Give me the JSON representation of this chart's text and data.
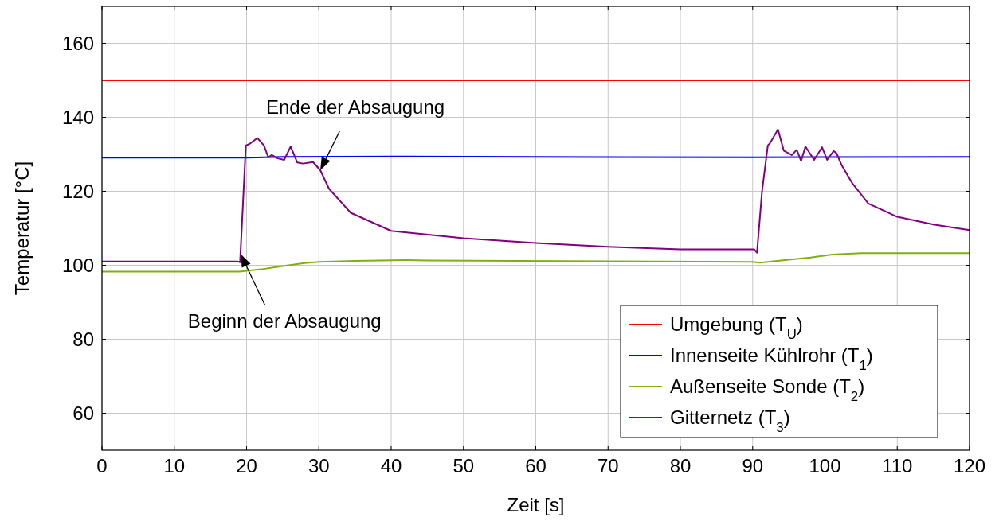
{
  "chart_data": {
    "type": "line",
    "xlabel": "Zeit [s]",
    "ylabel": "Temperatur [°C]",
    "xlim": [
      0,
      120
    ],
    "ylim": [
      50,
      170
    ],
    "xticks": [
      0,
      10,
      20,
      30,
      40,
      50,
      60,
      70,
      80,
      90,
      100,
      110,
      120
    ],
    "yticks": [
      60,
      80,
      100,
      120,
      140,
      160
    ],
    "grid": true,
    "legend": "bottom right",
    "marker": "none",
    "line_style": "solid",
    "series": [
      {
        "name": "Umgebung (T$_{U}$)",
        "color": "#ff0000",
        "x": [
          0,
          120
        ],
        "values": [
          150,
          150
        ]
      },
      {
        "name": "Innenseite Kühlrohr (T$_{1}$)",
        "color": "#0000ff",
        "x": [
          0,
          20,
          25,
          40,
          60,
          90,
          120
        ],
        "values": [
          129.1,
          129.1,
          129.3,
          129.4,
          129.3,
          129.2,
          129.3
        ]
      },
      {
        "name": "Außenseite Sonde (T$_{2}$)",
        "color": "#80b010",
        "x": [
          0,
          19,
          22,
          25,
          28,
          30,
          35,
          42,
          45,
          90,
          91,
          95,
          98,
          101,
          105,
          120
        ],
        "values": [
          98.3,
          98.3,
          98.9,
          99.8,
          100.6,
          100.9,
          101.2,
          101.4,
          101.3,
          100.9,
          100.7,
          101.5,
          102.1,
          102.9,
          103.3,
          103.3
        ]
      },
      {
        "name": "Gitternetz (T$_{3}$)",
        "color": "#800080",
        "x": [
          0,
          18.8,
          19.1,
          19.9,
          20.4,
          21.5,
          22.4,
          23,
          23.5,
          24.3,
          25.2,
          26.1,
          27,
          27.8,
          29.2,
          30.2,
          31.4,
          34.4,
          40,
          50,
          60,
          70,
          80,
          90.2,
          90.6,
          91.3,
          92.1,
          92.4,
          93.5,
          94.3,
          95.4,
          96.1,
          96.7,
          97.3,
          98.5,
          99.6,
          100.3,
          101.2,
          101.6,
          102.3,
          103.8,
          106,
          110,
          115,
          120
        ],
        "values": [
          101,
          101,
          100.8,
          132.4,
          132.8,
          134.4,
          132.4,
          129.2,
          129.8,
          128.9,
          128.5,
          132.1,
          127.8,
          127.5,
          127.9,
          125.7,
          120.7,
          114.2,
          109.3,
          107.3,
          106,
          105,
          104.3,
          104.3,
          103.4,
          120,
          132.4,
          133,
          136.7,
          131,
          129.8,
          131.2,
          128.2,
          132.1,
          128.5,
          131.9,
          128.5,
          130.9,
          130.3,
          127.1,
          122.1,
          116.7,
          113.1,
          111,
          109.5
        ]
      }
    ],
    "annotations": [
      {
        "text": "Ende der Absaugung",
        "x": 30.2,
        "y": 125.7
      },
      {
        "text": "Beginn der Absaugung",
        "x": 19.2,
        "y": 103
      }
    ]
  }
}
